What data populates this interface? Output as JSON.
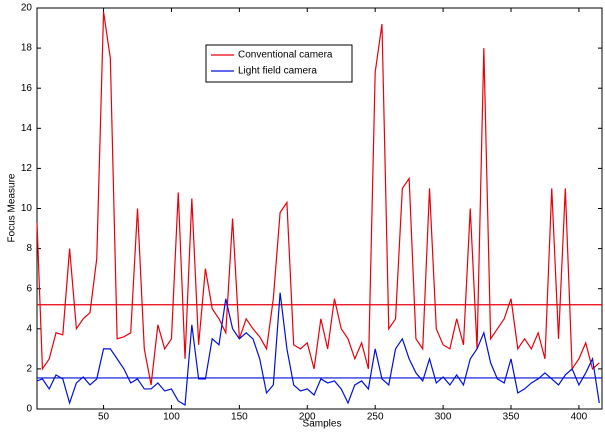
{
  "chart_data": {
    "type": "line",
    "xlabel": "Samples",
    "ylabel": "Focus Measure",
    "x": [
      1,
      5,
      10,
      15,
      20,
      25,
      30,
      35,
      40,
      45,
      50,
      55,
      60,
      65,
      70,
      75,
      80,
      85,
      90,
      95,
      100,
      105,
      110,
      115,
      120,
      125,
      130,
      135,
      140,
      145,
      150,
      155,
      160,
      165,
      170,
      175,
      180,
      185,
      190,
      195,
      200,
      205,
      210,
      215,
      220,
      225,
      230,
      235,
      240,
      245,
      250,
      255,
      260,
      265,
      270,
      275,
      280,
      285,
      290,
      295,
      300,
      305,
      310,
      315,
      320,
      325,
      330,
      335,
      340,
      345,
      350,
      355,
      360,
      365,
      370,
      375,
      380,
      385,
      390,
      395,
      400,
      405,
      410,
      415
    ],
    "series": [
      {
        "name": "Conventional camera",
        "color": "#e8000b",
        "values": [
          9.3,
          2,
          2.5,
          3.8,
          3.7,
          8,
          4,
          4.5,
          4.8,
          7.5,
          19.8,
          17.5,
          3.5,
          3.6,
          3.8,
          10,
          3,
          1.2,
          4.2,
          3,
          3.5,
          10.8,
          2.5,
          10.5,
          3.2,
          7,
          5,
          4.5,
          3.8,
          9.5,
          3.5,
          4.5,
          4,
          3.6,
          3,
          5.5,
          9.8,
          10.3,
          3.2,
          3,
          3.3,
          2,
          4.5,
          3,
          5.5,
          4,
          3.5,
          2.5,
          3.3,
          2,
          16.8,
          19.2,
          4,
          4.5,
          11,
          11.5,
          3.5,
          3,
          11,
          4,
          3.2,
          3,
          4.5,
          3.2,
          10,
          3,
          18,
          3.5,
          4,
          4.5,
          5.5,
          3,
          3.5,
          3,
          3.8,
          2.5,
          11,
          3.5,
          11,
          2,
          2.5,
          3.3,
          2,
          2.3
        ]
      },
      {
        "name": "Light field camera",
        "color": "#0010d8",
        "values": [
          1.4,
          1.5,
          1,
          1.7,
          1.5,
          0.3,
          1.3,
          1.6,
          1.2,
          1.5,
          3,
          3,
          2.5,
          2,
          1.3,
          1.5,
          1,
          1,
          1.3,
          0.9,
          1,
          0.4,
          0.2,
          4.2,
          1.5,
          1.5,
          3.5,
          3.2,
          5.5,
          4,
          3.5,
          3.8,
          3.5,
          2.5,
          0.8,
          1.2,
          5.8,
          3,
          1.2,
          0.9,
          1,
          0.7,
          1.5,
          1.3,
          1.4,
          1,
          0.3,
          1.2,
          1.4,
          1,
          3,
          1.5,
          1.2,
          3,
          3.5,
          2.5,
          1.8,
          1.4,
          2.5,
          1.3,
          1.6,
          1.2,
          1.7,
          1.2,
          2.5,
          3,
          3.8,
          2.3,
          1.5,
          1.3,
          2.5,
          0.8,
          1,
          1.3,
          1.5,
          1.8,
          1.5,
          1.2,
          1.7,
          2,
          1.2,
          1.8,
          2.5,
          0.3
        ]
      }
    ],
    "reference_lines": [
      {
        "value": 5.2,
        "color": "#e8000b"
      },
      {
        "value": 1.55,
        "color": "#0010d8"
      }
    ],
    "xlim": [
      1,
      417
    ],
    "xticks": [
      50,
      100,
      150,
      200,
      250,
      300,
      350,
      400
    ],
    "ylim": [
      0,
      20
    ],
    "yticks": [
      0,
      2,
      4,
      6,
      8,
      10,
      12,
      14,
      16,
      18,
      20
    ],
    "grid": false,
    "legend": "top-center"
  }
}
